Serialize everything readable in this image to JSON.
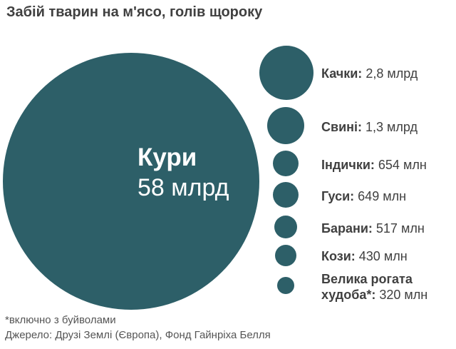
{
  "colors": {
    "bubble": "#2d5f68",
    "big_label": "#ffffff",
    "name_text": "#404040",
    "value_text": "#404040"
  },
  "chart_data": {
    "type": "bubble",
    "title": "Забій тварин на м'ясо, голів щороку",
    "unit_note": "голів щороку",
    "items": [
      {
        "name": "Кури",
        "value_text": "58 млрд",
        "value": 58000000000
      },
      {
        "name": "Качки:",
        "value_text": "2,8 млрд",
        "value": 2800000000
      },
      {
        "name": "Свині:",
        "value_text": "1,3 млрд",
        "value": 1300000000
      },
      {
        "name": "Індички:",
        "value_text": "654 млн",
        "value": 654000000
      },
      {
        "name": "Гуси:",
        "value_text": "649 млн",
        "value": 649000000
      },
      {
        "name": "Барани:",
        "value_text": "517 млн",
        "value": 517000000
      },
      {
        "name": "Кози:",
        "value_text": "430 млн",
        "value": 430000000
      },
      {
        "name_line1": "Велика рогата",
        "name": "худоба*:",
        "value_text": "320 млн",
        "value": 320000000
      }
    ]
  },
  "footnote": "*включно з буйволами",
  "source": "Джерело: Друзі Землі (Європа), Фонд Гайнріха Белля"
}
